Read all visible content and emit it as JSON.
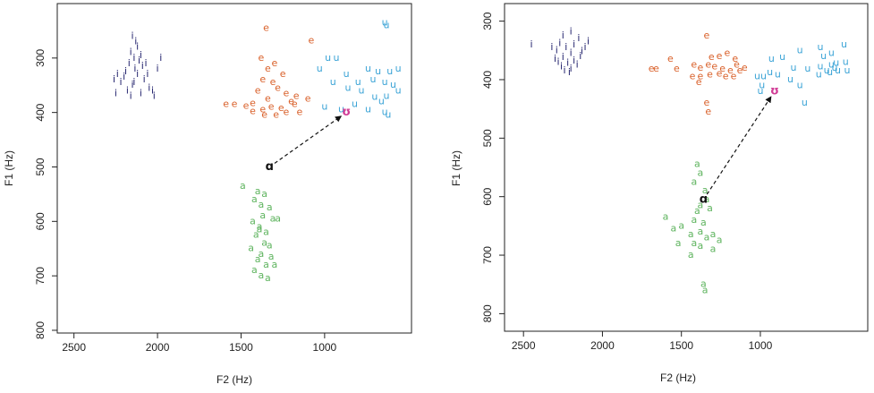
{
  "chart_data": [
    {
      "type": "scatter",
      "title": "",
      "xlabel": "F2 (Hz)",
      "ylabel": "F1 (Hz)",
      "x_reversed": true,
      "y_reversed": true,
      "xlim": [
        2600,
        480
      ],
      "ylim": [
        200,
        805
      ],
      "x_ticks": [
        2500,
        2000,
        1500,
        1000
      ],
      "y_ticks": [
        300,
        400,
        500,
        600,
        700,
        800
      ],
      "series": [
        {
          "name": "i",
          "color": "#1f1f6b",
          "marker": "i",
          "points": [
            [
              2150,
              260
            ],
            [
              2130,
              270
            ],
            [
              2120,
              280
            ],
            [
              2160,
              290
            ],
            [
              2100,
              295
            ],
            [
              2140,
              300
            ],
            [
              2110,
              305
            ],
            [
              2170,
              310
            ],
            [
              2090,
              315
            ],
            [
              2135,
              320
            ],
            [
              2060,
              330
            ],
            [
              2200,
              335
            ],
            [
              2080,
              340
            ],
            [
              2220,
              345
            ],
            [
              2150,
              350
            ],
            [
              2050,
              355
            ],
            [
              2180,
              360
            ],
            [
              2100,
              365
            ],
            [
              2020,
              370
            ],
            [
              1980,
              300
            ],
            [
              2000,
              320
            ],
            [
              2240,
              330
            ],
            [
              2260,
              340
            ],
            [
              2120,
              330
            ],
            [
              2070,
              310
            ],
            [
              2160,
              370
            ],
            [
              2030,
              360
            ],
            [
              2190,
              325
            ],
            [
              2140,
              345
            ],
            [
              2250,
              365
            ]
          ]
        },
        {
          "name": "e",
          "color": "#d9602a",
          "marker": "e",
          "points": [
            [
              1350,
              245
            ],
            [
              1080,
              268
            ],
            [
              1380,
              300
            ],
            [
              1300,
              310
            ],
            [
              1340,
              320
            ],
            [
              1250,
              330
            ],
            [
              1370,
              340
            ],
            [
              1310,
              345
            ],
            [
              1280,
              355
            ],
            [
              1230,
              365
            ],
            [
              1170,
              370
            ],
            [
              1400,
              360
            ],
            [
              1340,
              375
            ],
            [
              1200,
              380
            ],
            [
              1430,
              383
            ],
            [
              1590,
              385
            ],
            [
              1540,
              385
            ],
            [
              1470,
              388
            ],
            [
              1260,
              392
            ],
            [
              1100,
              375
            ],
            [
              1180,
              385
            ],
            [
              1320,
              390
            ],
            [
              1370,
              395
            ],
            [
              1430,
              398
            ],
            [
              1290,
              405
            ],
            [
              1360,
              405
            ],
            [
              1230,
              400
            ],
            [
              1150,
              400
            ]
          ]
        },
        {
          "name": "u",
          "color": "#3aa3d6",
          "marker": "u",
          "points": [
            [
              640,
              235
            ],
            [
              630,
              240
            ],
            [
              930,
              300
            ],
            [
              980,
              300
            ],
            [
              1030,
              320
            ],
            [
              740,
              320
            ],
            [
              560,
              320
            ],
            [
              610,
              325
            ],
            [
              680,
              325
            ],
            [
              870,
              330
            ],
            [
              710,
              340
            ],
            [
              800,
              345
            ],
            [
              950,
              345
            ],
            [
              640,
              345
            ],
            [
              590,
              350
            ],
            [
              860,
              355
            ],
            [
              780,
              360
            ],
            [
              560,
              360
            ],
            [
              630,
              370
            ],
            [
              700,
              372
            ],
            [
              660,
              380
            ],
            [
              820,
              385
            ],
            [
              1000,
              390
            ],
            [
              740,
              395
            ],
            [
              900,
              395
            ],
            [
              640,
              400
            ],
            [
              620,
              405
            ]
          ]
        },
        {
          "name": "a",
          "color": "#5fb45f",
          "marker": "a",
          "points": [
            [
              1490,
              535
            ],
            [
              1400,
              545
            ],
            [
              1360,
              550
            ],
            [
              1420,
              560
            ],
            [
              1380,
              570
            ],
            [
              1330,
              575
            ],
            [
              1370,
              590
            ],
            [
              1280,
              595
            ],
            [
              1310,
              595
            ],
            [
              1430,
              600
            ],
            [
              1390,
              610
            ],
            [
              1350,
              620
            ],
            [
              1410,
              625
            ],
            [
              1360,
              640
            ],
            [
              1330,
              645
            ],
            [
              1440,
              650
            ],
            [
              1380,
              660
            ],
            [
              1400,
              670
            ],
            [
              1350,
              680
            ],
            [
              1300,
              680
            ],
            [
              1420,
              690
            ],
            [
              1380,
              700
            ],
            [
              1340,
              705
            ],
            [
              1320,
              665
            ],
            [
              1390,
              615
            ]
          ]
        }
      ],
      "reference_points": [
        {
          "label": "ɑ",
          "x": 1330,
          "y": 500,
          "color": "#111111"
        },
        {
          "label": "ʊ",
          "x": 870,
          "y": 400,
          "color": "#d13c96"
        }
      ],
      "arrow": {
        "from": [
          1330,
          500
        ],
        "to": [
          870,
          400
        ],
        "style": "dashed"
      }
    },
    {
      "type": "scatter",
      "title": "",
      "xlabel": "F2 (Hz)",
      "ylabel": "F1 (Hz)",
      "x_reversed": true,
      "y_reversed": true,
      "xlim": [
        2620,
        320
      ],
      "ylim": [
        270,
        830
      ],
      "x_ticks": [
        2500,
        2000,
        1500,
        1000
      ],
      "y_ticks": [
        300,
        400,
        500,
        600,
        700,
        800
      ],
      "series": [
        {
          "name": "i",
          "color": "#1f1f6b",
          "marker": "i",
          "points": [
            [
              2200,
              318
            ],
            [
              2250,
              325
            ],
            [
              2150,
              330
            ],
            [
              2270,
              338
            ],
            [
              2180,
              340
            ],
            [
              2230,
              345
            ],
            [
              2110,
              345
            ],
            [
              2290,
              350
            ],
            [
              2200,
              355
            ],
            [
              2140,
              360
            ],
            [
              2250,
              362
            ],
            [
              2300,
              365
            ],
            [
              2180,
              368
            ],
            [
              2220,
              372
            ],
            [
              2160,
              375
            ],
            [
              2260,
              378
            ],
            [
              2200,
              382
            ],
            [
              2240,
              385
            ],
            [
              2320,
              345
            ],
            [
              2450,
              340
            ],
            [
              2090,
              335
            ],
            [
              2130,
              352
            ],
            [
              2280,
              370
            ],
            [
              2210,
              388
            ]
          ]
        },
        {
          "name": "e",
          "color": "#d9602a",
          "marker": "e",
          "points": [
            [
              1340,
              325
            ],
            [
              1210,
              355
            ],
            [
              1260,
              360
            ],
            [
              1310,
              362
            ],
            [
              1160,
              365
            ],
            [
              1570,
              365
            ],
            [
              1420,
              375
            ],
            [
              1330,
              375
            ],
            [
              1290,
              378
            ],
            [
              1380,
              380
            ],
            [
              1690,
              382
            ],
            [
              1660,
              382
            ],
            [
              1530,
              382
            ],
            [
              1240,
              382
            ],
            [
              1190,
              385
            ],
            [
              1130,
              385
            ],
            [
              1100,
              380
            ],
            [
              1260,
              390
            ],
            [
              1320,
              392
            ],
            [
              1380,
              395
            ],
            [
              1220,
              395
            ],
            [
              1170,
              395
            ],
            [
              1430,
              395
            ],
            [
              1390,
              405
            ],
            [
              1150,
              375
            ],
            [
              1330,
              455
            ],
            [
              1340,
              440
            ]
          ]
        },
        {
          "name": "u",
          "color": "#3aa3d6",
          "marker": "u",
          "points": [
            [
              470,
              340
            ],
            [
              620,
              345
            ],
            [
              750,
              350
            ],
            [
              550,
              355
            ],
            [
              600,
              360
            ],
            [
              860,
              362
            ],
            [
              930,
              365
            ],
            [
              460,
              370
            ],
            [
              520,
              372
            ],
            [
              550,
              375
            ],
            [
              620,
              378
            ],
            [
              790,
              380
            ],
            [
              700,
              382
            ],
            [
              580,
              385
            ],
            [
              510,
              385
            ],
            [
              450,
              385
            ],
            [
              560,
              388
            ],
            [
              940,
              388
            ],
            [
              890,
              392
            ],
            [
              630,
              392
            ],
            [
              980,
              395
            ],
            [
              1020,
              395
            ],
            [
              810,
              400
            ],
            [
              990,
              410
            ],
            [
              750,
              410
            ],
            [
              1000,
              420
            ],
            [
              720,
              440
            ],
            [
              530,
              380
            ]
          ]
        },
        {
          "name": "a",
          "color": "#5fb45f",
          "marker": "a",
          "points": [
            [
              1400,
              545
            ],
            [
              1380,
              560
            ],
            [
              1420,
              575
            ],
            [
              1350,
              590
            ],
            [
              1340,
              605
            ],
            [
              1380,
              615
            ],
            [
              1320,
              620
            ],
            [
              1400,
              625
            ],
            [
              1600,
              635
            ],
            [
              1420,
              640
            ],
            [
              1360,
              645
            ],
            [
              1500,
              650
            ],
            [
              1550,
              655
            ],
            [
              1380,
              660
            ],
            [
              1440,
              665
            ],
            [
              1300,
              665
            ],
            [
              1340,
              670
            ],
            [
              1260,
              675
            ],
            [
              1420,
              680
            ],
            [
              1520,
              680
            ],
            [
              1380,
              685
            ],
            [
              1300,
              690
            ],
            [
              1440,
              700
            ],
            [
              1360,
              750
            ],
            [
              1350,
              760
            ]
          ]
        }
      ],
      "reference_points": [
        {
          "label": "ɑ",
          "x": 1360,
          "y": 605,
          "color": "#111111"
        },
        {
          "label": "ʊ",
          "x": 910,
          "y": 420,
          "color": "#d13c96"
        }
      ],
      "arrow": {
        "from": [
          1360,
          605
        ],
        "to": [
          910,
          420
        ],
        "style": "dashed"
      }
    }
  ]
}
